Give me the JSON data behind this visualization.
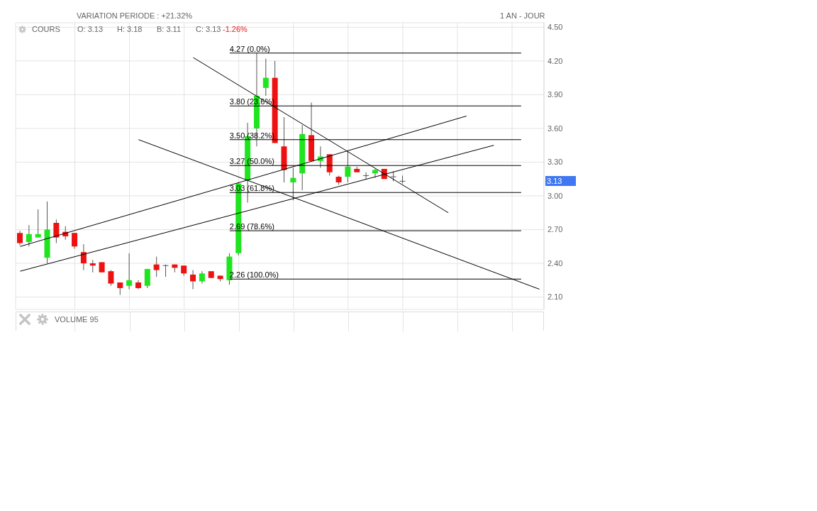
{
  "chart_data": {
    "type": "candlestick",
    "title": "VARIATION PERIODE : +21.32%",
    "annotations": [
      "1 AN - JOUR",
      "COURS",
      "O: 3.13",
      "H: 3.18",
      "B: 3.11",
      "C: 3.13",
      "-1.26%",
      "VOLUME 95",
      "3.13"
    ],
    "categories": [
      null,
      null,
      null,
      null,
      null,
      null,
      null,
      null,
      null,
      null,
      null,
      null,
      null,
      null,
      null,
      null,
      null,
      null,
      null,
      null,
      null,
      null,
      null,
      null,
      null,
      null,
      null,
      null,
      null,
      null,
      null,
      null,
      null,
      null,
      null,
      null,
      null,
      null,
      null,
      null,
      null,
      null,
      null,
      null,
      null,
      null,
      null,
      null,
      null,
      null,
      null,
      null,
      null,
      null,
      null,
      null,
      null,
      null
    ],
    "ohlc": [
      [
        2.67,
        2.69,
        2.56,
        2.58
      ],
      [
        2.59,
        2.74,
        2.55,
        2.66
      ],
      [
        2.63,
        2.88,
        2.63,
        2.66
      ],
      [
        2.45,
        2.95,
        2.4,
        2.7
      ],
      [
        2.76,
        2.79,
        2.58,
        2.63
      ],
      [
        2.68,
        2.73,
        2.61,
        2.64
      ],
      [
        2.67,
        2.67,
        2.53,
        2.55
      ],
      [
        2.5,
        2.57,
        2.34,
        2.4
      ],
      [
        2.4,
        2.43,
        2.32,
        2.38
      ],
      [
        2.41,
        2.41,
        2.32,
        2.32
      ],
      [
        2.33,
        2.34,
        2.2,
        2.22
      ],
      [
        2.23,
        2.23,
        2.12,
        2.18
      ],
      [
        2.2,
        2.49,
        2.17,
        2.25
      ],
      [
        2.23,
        2.25,
        2.17,
        2.18
      ],
      [
        2.2,
        2.35,
        2.18,
        2.35
      ],
      [
        2.39,
        2.46,
        2.28,
        2.34
      ],
      [
        2.38,
        2.39,
        2.28,
        2.38
      ],
      [
        2.39,
        2.39,
        2.32,
        2.36
      ],
      [
        2.38,
        2.38,
        2.29,
        2.31
      ],
      [
        2.3,
        2.34,
        2.17,
        2.24
      ],
      [
        2.24,
        2.33,
        2.22,
        2.31
      ],
      [
        2.33,
        2.33,
        2.27,
        2.27
      ],
      [
        2.29,
        2.29,
        2.24,
        2.26
      ],
      [
        2.25,
        2.49,
        2.21,
        2.46
      ],
      [
        2.49,
        3.12,
        2.47,
        3.11
      ],
      [
        3.14,
        3.65,
        2.94,
        3.53
      ],
      [
        3.6,
        4.27,
        3.44,
        3.89
      ],
      [
        3.96,
        4.22,
        3.89,
        4.05
      ],
      [
        4.05,
        4.2,
        3.47,
        3.47
      ],
      [
        3.44,
        3.7,
        3.12,
        3.23
      ],
      [
        3.12,
        3.25,
        2.96,
        3.16
      ],
      [
        3.2,
        3.63,
        3.05,
        3.55
      ],
      [
        3.54,
        3.83,
        3.31,
        3.31
      ],
      [
        3.31,
        3.44,
        3.25,
        3.35
      ],
      [
        3.37,
        3.37,
        3.18,
        3.21
      ],
      [
        3.17,
        3.18,
        3.1,
        3.12
      ],
      [
        3.17,
        3.4,
        3.12,
        3.26
      ],
      [
        3.24,
        3.26,
        3.21,
        3.21
      ],
      [
        3.18,
        3.21,
        3.15,
        3.18
      ],
      [
        3.2,
        3.24,
        3.16,
        3.23
      ],
      [
        3.24,
        3.24,
        3.15,
        3.15
      ],
      [
        3.17,
        3.22,
        3.13,
        3.17
      ],
      [
        3.13,
        3.18,
        3.11,
        3.13
      ],
      null,
      null,
      null,
      null,
      null,
      null,
      null,
      null,
      null,
      null,
      null,
      null,
      null,
      null,
      null
    ],
    "colors": [
      "#ee1111",
      "#1ee51e",
      "#1ee51e",
      "#1ee51e",
      "#ee1111",
      "#ee1111",
      "#ee1111",
      "#ee1111",
      "#ee1111",
      "#ee1111",
      "#ee1111",
      "#ee1111",
      "#1ee51e",
      "#ee1111",
      "#1ee51e",
      "#ee1111",
      "#555555",
      "#ee1111",
      "#ee1111",
      "#ee1111",
      "#1ee51e",
      "#ee1111",
      "#ee1111",
      "#1ee51e",
      "#1ee51e",
      "#1ee51e",
      "#1ee51e",
      "#1ee51e",
      "#ee1111",
      "#ee1111",
      "#1ee51e",
      "#1ee51e",
      "#ee1111",
      "#1ee51e",
      "#ee1111",
      "#ee1111",
      "#1ee51e",
      "#ee1111",
      "#555555",
      "#1ee51e",
      "#ee1111",
      "#555555",
      "#555555",
      null,
      null,
      null,
      null,
      null,
      null,
      null,
      null,
      null,
      null,
      null,
      null,
      null,
      null,
      null
    ],
    "series": [
      {
        "name": "4.27 (0.0%)",
        "type": "line",
        "color": "#000000",
        "values": [
          null,
          null,
          null,
          null,
          null,
          null,
          null,
          null,
          null,
          null,
          null,
          null,
          null,
          null,
          null,
          null,
          null,
          null,
          null,
          null,
          null,
          null,
          null,
          4.27,
          null,
          null,
          null,
          null,
          null,
          null,
          null,
          null,
          null,
          null,
          null,
          null,
          null,
          null,
          null,
          null,
          null,
          null,
          null,
          null,
          null,
          null,
          null,
          null,
          null,
          null,
          null,
          null,
          null,
          null,
          null,
          4.27,
          null,
          null
        ]
      },
      {
        "name": "3.80 (23.6%)",
        "type": "line",
        "color": "#000000",
        "values": [
          null,
          null,
          null,
          null,
          null,
          null,
          null,
          null,
          null,
          null,
          null,
          null,
          null,
          null,
          null,
          null,
          null,
          null,
          null,
          null,
          null,
          null,
          null,
          3.8,
          null,
          null,
          null,
          null,
          null,
          null,
          null,
          null,
          null,
          null,
          null,
          null,
          null,
          null,
          null,
          null,
          null,
          null,
          null,
          null,
          null,
          null,
          null,
          null,
          null,
          null,
          null,
          null,
          null,
          null,
          null,
          3.8,
          null,
          null
        ]
      },
      {
        "name": "3.50 (38.2%)",
        "type": "line",
        "color": "#000000",
        "values": [
          null,
          null,
          null,
          null,
          null,
          null,
          null,
          null,
          null,
          null,
          null,
          null,
          null,
          null,
          null,
          null,
          null,
          null,
          null,
          null,
          null,
          null,
          null,
          3.5,
          null,
          null,
          null,
          null,
          null,
          null,
          null,
          null,
          null,
          null,
          null,
          null,
          null,
          null,
          null,
          null,
          null,
          null,
          null,
          null,
          null,
          null,
          null,
          null,
          null,
          null,
          null,
          null,
          null,
          null,
          null,
          3.5,
          null,
          null
        ]
      },
      {
        "name": "3.27 (50.0%)",
        "type": "line",
        "color": "#000000",
        "values": [
          null,
          null,
          null,
          null,
          null,
          null,
          null,
          null,
          null,
          null,
          null,
          null,
          null,
          null,
          null,
          null,
          null,
          null,
          null,
          null,
          null,
          null,
          null,
          3.27,
          null,
          null,
          null,
          null,
          null,
          null,
          null,
          null,
          null,
          null,
          null,
          null,
          null,
          null,
          null,
          null,
          null,
          null,
          null,
          null,
          null,
          null,
          null,
          null,
          null,
          null,
          null,
          null,
          null,
          null,
          null,
          3.27,
          null,
          null
        ]
      },
      {
        "name": "3.03 (61.8%)",
        "type": "line",
        "color": "#000000",
        "values": [
          null,
          null,
          null,
          null,
          null,
          null,
          null,
          null,
          null,
          null,
          null,
          null,
          null,
          null,
          null,
          null,
          null,
          null,
          null,
          null,
          null,
          null,
          null,
          3.03,
          null,
          null,
          null,
          null,
          null,
          null,
          null,
          null,
          null,
          null,
          null,
          null,
          null,
          null,
          null,
          null,
          null,
          null,
          null,
          null,
          null,
          null,
          null,
          null,
          null,
          null,
          null,
          null,
          null,
          null,
          null,
          3.03,
          null,
          null
        ]
      },
      {
        "name": "2.69 (78.6%)",
        "type": "line",
        "color": "#000000",
        "values": [
          null,
          null,
          null,
          null,
          null,
          null,
          null,
          null,
          null,
          null,
          null,
          null,
          null,
          null,
          null,
          null,
          null,
          null,
          null,
          null,
          null,
          null,
          null,
          2.69,
          null,
          null,
          null,
          null,
          null,
          null,
          null,
          null,
          null,
          null,
          null,
          null,
          null,
          null,
          null,
          null,
          null,
          null,
          null,
          null,
          null,
          null,
          null,
          null,
          null,
          null,
          null,
          null,
          null,
          null,
          null,
          2.69,
          null,
          null
        ]
      },
      {
        "name": "2.26 (100.0%)",
        "type": "line",
        "color": "#000000",
        "values": [
          null,
          null,
          null,
          null,
          null,
          null,
          null,
          null,
          null,
          null,
          null,
          null,
          null,
          null,
          null,
          null,
          null,
          null,
          null,
          null,
          null,
          null,
          null,
          2.26,
          null,
          null,
          null,
          null,
          null,
          null,
          null,
          null,
          null,
          null,
          null,
          null,
          null,
          null,
          null,
          null,
          null,
          null,
          null,
          null,
          null,
          null,
          null,
          null,
          null,
          null,
          null,
          null,
          null,
          null,
          null,
          2.26,
          null,
          null
        ]
      },
      {
        "type": "line",
        "color": "#000000",
        "values": [
          null,
          null,
          null,
          null,
          null,
          null,
          null,
          null,
          null,
          null,
          null,
          null,
          null,
          null,
          null,
          null,
          null,
          null,
          null,
          4.23,
          null,
          null,
          null,
          null,
          null,
          null,
          null,
          null,
          null,
          null,
          null,
          null,
          null,
          null,
          null,
          null,
          null,
          null,
          null,
          null,
          null,
          null,
          null,
          null,
          null,
          null,
          null,
          2.85,
          null,
          null,
          null,
          null,
          null,
          null,
          null,
          null,
          null,
          null
        ]
      },
      {
        "type": "line",
        "color": "#000000",
        "values": [
          null,
          null,
          null,
          null,
          null,
          null,
          null,
          null,
          null,
          null,
          null,
          null,
          null,
          3.5,
          null,
          null,
          null,
          null,
          null,
          null,
          null,
          null,
          null,
          null,
          null,
          null,
          null,
          null,
          null,
          null,
          null,
          null,
          null,
          null,
          null,
          null,
          null,
          null,
          null,
          null,
          null,
          null,
          null,
          null,
          null,
          null,
          null,
          null,
          null,
          null,
          null,
          null,
          null,
          null,
          null,
          null,
          null,
          2.17
        ]
      },
      {
        "type": "line",
        "color": "#000000",
        "values": [
          2.55,
          null,
          null,
          null,
          null,
          null,
          null,
          null,
          null,
          null,
          null,
          null,
          null,
          null,
          null,
          null,
          null,
          null,
          null,
          null,
          null,
          null,
          null,
          null,
          null,
          null,
          null,
          null,
          null,
          null,
          null,
          null,
          null,
          null,
          null,
          null,
          null,
          null,
          null,
          null,
          null,
          null,
          null,
          null,
          null,
          null,
          null,
          null,
          null,
          3.71,
          null,
          null,
          null,
          null,
          null,
          null,
          null,
          null
        ]
      },
      {
        "type": "line",
        "color": "#000000",
        "values": [
          2.33,
          null,
          null,
          null,
          null,
          null,
          null,
          null,
          null,
          null,
          null,
          null,
          null,
          null,
          null,
          null,
          null,
          null,
          null,
          null,
          null,
          null,
          null,
          null,
          null,
          null,
          null,
          null,
          null,
          null,
          null,
          null,
          null,
          null,
          null,
          null,
          null,
          null,
          null,
          null,
          null,
          null,
          null,
          null,
          null,
          null,
          null,
          null,
          null,
          null,
          null,
          null,
          3.45,
          null,
          null,
          null,
          null,
          null
        ]
      }
    ],
    "ylim": [
      1.99,
      4.54
    ],
    "yticks": [
      {
        "value": 2.1,
        "label": "2.10"
      },
      {
        "value": 2.4,
        "label": "2.40"
      },
      {
        "value": 2.7,
        "label": "2.70"
      },
      {
        "value": 3,
        "label": "3.00"
      },
      {
        "value": 3.3,
        "label": "3.30"
      },
      {
        "value": 3.6,
        "label": "3.60"
      },
      {
        "value": 3.9,
        "label": "3.90"
      },
      {
        "value": 4.2,
        "label": "4.20"
      },
      {
        "value": 4.5,
        "label": "4.50"
      }
    ],
    "grid": true,
    "tick_labels": "y"
  }
}
